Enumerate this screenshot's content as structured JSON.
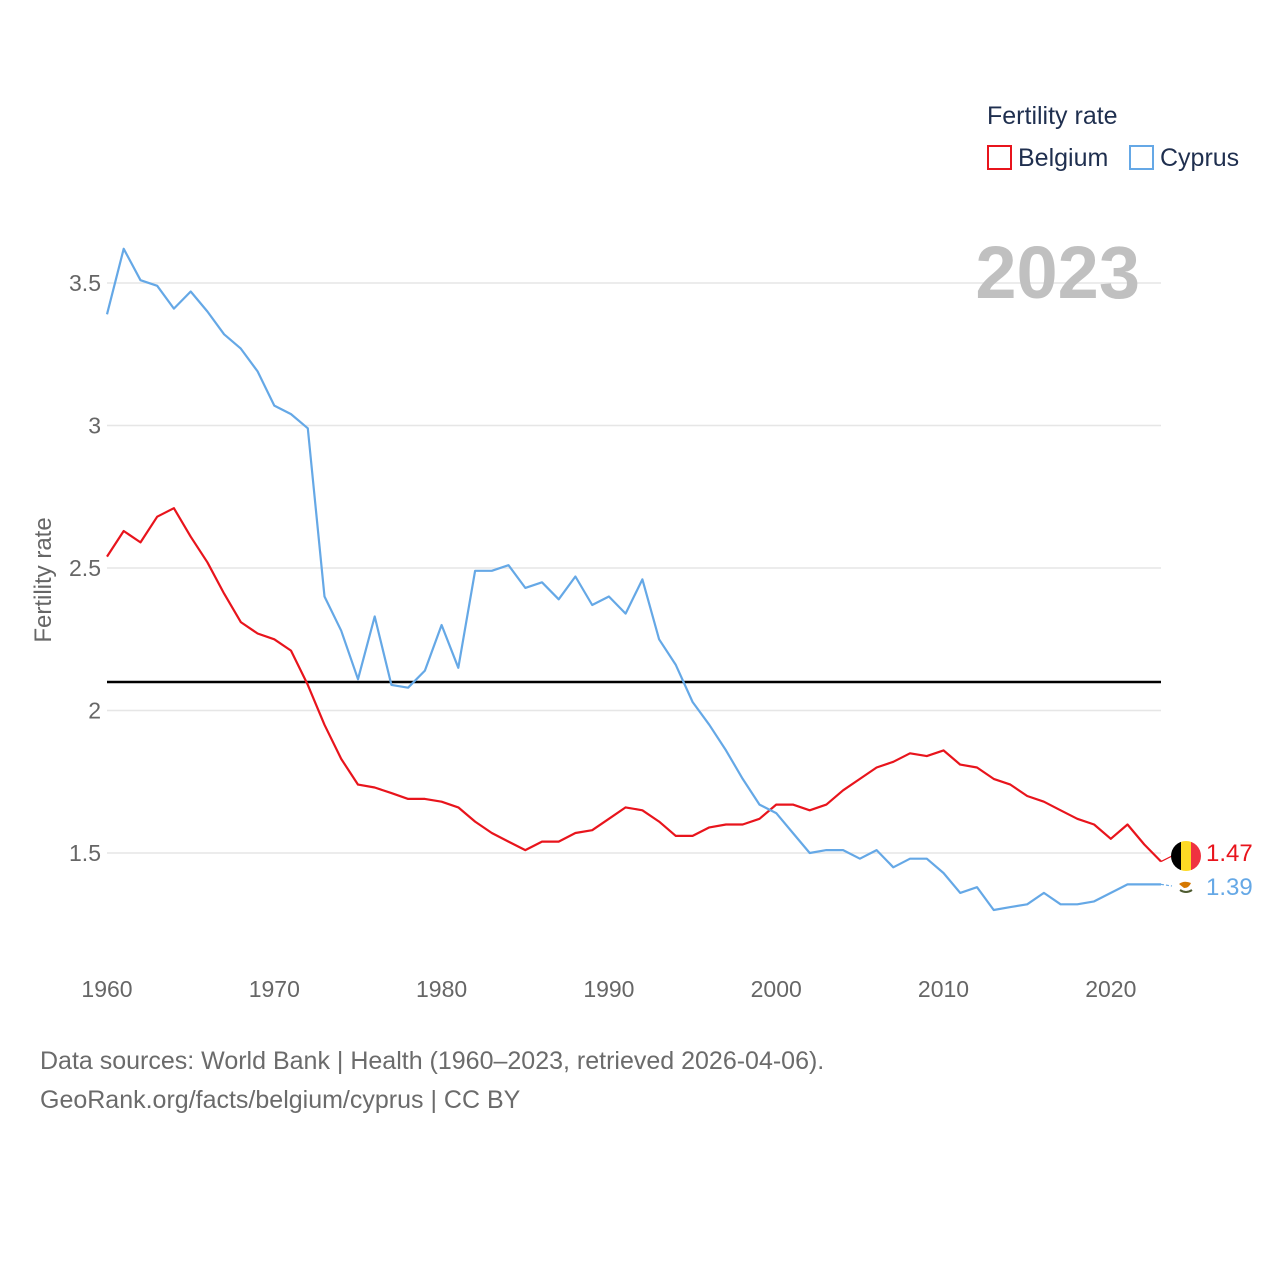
{
  "chart_data": {
    "type": "line",
    "ylabel": "Fertility rate",
    "xlabel": "",
    "xlim": [
      1960,
      2023
    ],
    "ylim": [
      1.15,
      3.75
    ],
    "x_ticks": [
      1960,
      1970,
      1980,
      1990,
      2000,
      2010,
      2020
    ],
    "y_ticks": [
      {
        "value": 1.5,
        "label": "1.5"
      },
      {
        "value": 2,
        "label": "2"
      },
      {
        "value": 2.5,
        "label": "2.5"
      },
      {
        "value": 3,
        "label": "3"
      },
      {
        "value": 3.5,
        "label": "3.5"
      }
    ],
    "legend_title": "Fertility rate",
    "legend_position": "top-right",
    "year_label": "2023",
    "reference_line": {
      "value": 2.1,
      "color": "#000000"
    },
    "series": [
      {
        "name": "Belgium",
        "color": "#e8141c",
        "start_year": 1960,
        "end_label": "1.47",
        "values": [
          2.54,
          2.63,
          2.59,
          2.68,
          2.71,
          2.61,
          2.52,
          2.41,
          2.31,
          2.27,
          2.25,
          2.21,
          2.09,
          1.95,
          1.83,
          1.74,
          1.73,
          1.71,
          1.69,
          1.69,
          1.68,
          1.66,
          1.61,
          1.57,
          1.54,
          1.51,
          1.54,
          1.54,
          1.57,
          1.58,
          1.62,
          1.66,
          1.65,
          1.61,
          1.56,
          1.56,
          1.59,
          1.6,
          1.6,
          1.62,
          1.67,
          1.67,
          1.65,
          1.67,
          1.72,
          1.76,
          1.8,
          1.82,
          1.85,
          1.84,
          1.86,
          1.81,
          1.8,
          1.76,
          1.74,
          1.7,
          1.68,
          1.65,
          1.62,
          1.6,
          1.55,
          1.6,
          1.53,
          1.47
        ]
      },
      {
        "name": "Cyprus",
        "color": "#65a8e6",
        "start_year": 1960,
        "end_label": "1.39",
        "values": [
          3.39,
          3.62,
          3.51,
          3.49,
          3.41,
          3.47,
          3.4,
          3.32,
          3.27,
          3.19,
          3.07,
          3.04,
          2.99,
          2.4,
          2.28,
          2.11,
          2.33,
          2.09,
          2.08,
          2.14,
          2.3,
          2.15,
          2.49,
          2.49,
          2.51,
          2.43,
          2.45,
          2.39,
          2.47,
          2.37,
          2.4,
          2.34,
          2.46,
          2.25,
          2.16,
          2.03,
          1.95,
          1.86,
          1.76,
          1.67,
          1.64,
          1.57,
          1.5,
          1.51,
          1.51,
          1.48,
          1.51,
          1.45,
          1.48,
          1.48,
          1.43,
          1.36,
          1.38,
          1.3,
          1.31,
          1.32,
          1.36,
          1.32,
          1.32,
          1.33,
          1.36,
          1.39,
          1.39,
          1.39
        ]
      }
    ]
  },
  "footer": {
    "sources_line": "Data sources: World Bank | Health (1960–2023, retrieved 2026-04-06).",
    "attribution_line": "GeoRank.org/facts/belgium/cyprus | CC BY"
  }
}
